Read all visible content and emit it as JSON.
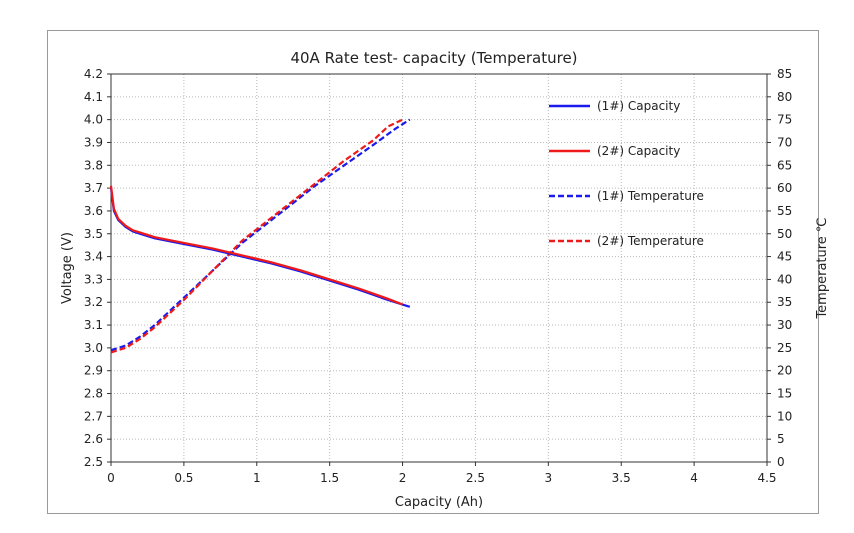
{
  "chart_data": {
    "type": "line",
    "title": "40A Rate test- capacity  (Temperature)",
    "xlabel": "Capacity  (Ah)",
    "ylabel": "Voltage (V)",
    "y2label": "Temperature ℃",
    "xlim": [
      0,
      4.5
    ],
    "ylim": [
      2.5,
      4.2
    ],
    "y2lim": [
      0,
      85
    ],
    "xticks": [
      "0",
      "0.5",
      "1",
      "1.5",
      "2",
      "2.5",
      "3",
      "3.5",
      "4",
      "4.5"
    ],
    "yticks": [
      "2.5",
      "2.6",
      "2.7",
      "2.8",
      "2.9",
      "3.0",
      "3.1",
      "3.2",
      "3.3",
      "3.4",
      "3.5",
      "3.6",
      "3.7",
      "3.8",
      "3.9",
      "4.0",
      "4.1",
      "4.2"
    ],
    "y2ticks": [
      "0",
      "5",
      "10",
      "15",
      "20",
      "25",
      "30",
      "35",
      "40",
      "45",
      "50",
      "55",
      "60",
      "65",
      "70",
      "75",
      "80",
      "85"
    ],
    "grid": true,
    "legend_position": "top-right",
    "series": [
      {
        "name": "(1#) Capacity",
        "axis": "left",
        "style": "solid",
        "color": "#1a1aee",
        "x": [
          0,
          0.02,
          0.05,
          0.1,
          0.15,
          0.2,
          0.3,
          0.5,
          0.7,
          0.9,
          1.1,
          1.3,
          1.5,
          1.7,
          1.9,
          2.05
        ],
        "y": [
          3.7,
          3.6,
          3.56,
          3.53,
          3.51,
          3.5,
          3.48,
          3.455,
          3.43,
          3.4,
          3.37,
          3.335,
          3.295,
          3.255,
          3.21,
          3.18
        ]
      },
      {
        "name": "(2#) Capacity",
        "axis": "left",
        "style": "solid",
        "color": "#ee1a1a",
        "x": [
          0,
          0.02,
          0.05,
          0.1,
          0.15,
          0.2,
          0.3,
          0.5,
          0.7,
          0.9,
          1.1,
          1.3,
          1.5,
          1.7,
          1.9,
          2.0
        ],
        "y": [
          3.71,
          3.61,
          3.565,
          3.535,
          3.515,
          3.505,
          3.485,
          3.46,
          3.435,
          3.405,
          3.375,
          3.34,
          3.3,
          3.26,
          3.215,
          3.19
        ]
      },
      {
        "name": "(1#) Temperature",
        "axis": "right",
        "style": "dashed",
        "color": "#1a1aee",
        "x": [
          0,
          0.1,
          0.2,
          0.3,
          0.5,
          0.7,
          0.9,
          1.0,
          1.2,
          1.4,
          1.6,
          1.8,
          1.95,
          2.05
        ],
        "y": [
          24.5,
          25.5,
          27.5,
          30,
          36,
          42,
          48,
          50.5,
          55.5,
          60.5,
          65,
          69.5,
          73,
          75
        ]
      },
      {
        "name": "(2#) Temperature",
        "axis": "right",
        "style": "dashed",
        "color": "#ee1a1a",
        "x": [
          0,
          0.1,
          0.2,
          0.3,
          0.5,
          0.7,
          0.9,
          1.0,
          1.2,
          1.4,
          1.6,
          1.8,
          1.9,
          2.0
        ],
        "y": [
          24,
          25,
          27,
          29.5,
          35.5,
          42,
          48.5,
          51,
          56,
          61,
          66,
          70.5,
          73.5,
          75
        ]
      }
    ]
  }
}
